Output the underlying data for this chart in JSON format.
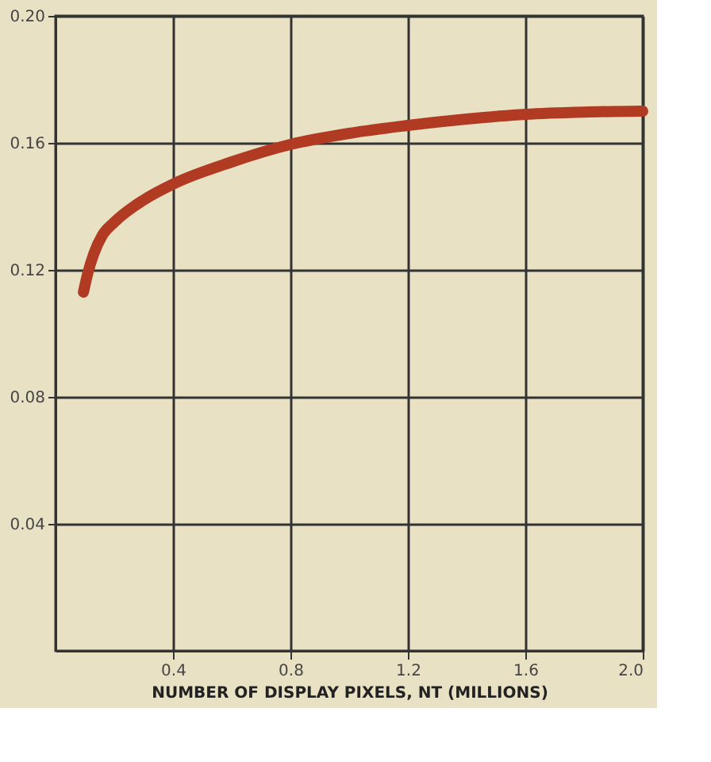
{
  "chart_data": {
    "type": "line",
    "xlabel": "NUMBER OF DISPLAY PIXELS, NT (MILLIONS)",
    "x": [
      0.095,
      0.11,
      0.13,
      0.16,
      0.2,
      0.3,
      0.4,
      0.6,
      0.8,
      1.0,
      1.2,
      1.4,
      1.6,
      1.8,
      2.0
    ],
    "series": [
      {
        "color": "#b03a22",
        "values": [
          0.113,
          0.119,
          0.125,
          0.131,
          0.135,
          0.142,
          0.147,
          0.154,
          0.1595,
          0.163,
          0.1655,
          0.1675,
          0.169,
          0.1697,
          0.17
        ]
      }
    ],
    "xlim": [
      0,
      2.0
    ],
    "ylim": [
      0,
      0.2
    ],
    "xticks": [
      0.4,
      0.8,
      1.2,
      1.6,
      {
        "value": 2.0,
        "label": "2.0"
      }
    ],
    "yticks": [
      0.04,
      0.08,
      0.12,
      0.16,
      {
        "value": 0.2,
        "label": "0.20"
      }
    ],
    "grid": true,
    "marker": "none",
    "line_style": "solid"
  }
}
